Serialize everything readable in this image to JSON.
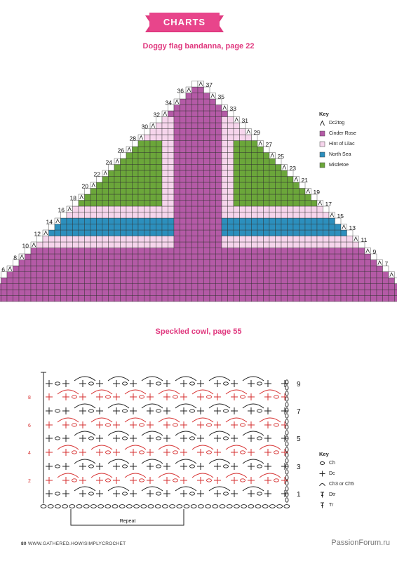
{
  "header": {
    "banner": "CHARTS"
  },
  "bandanna": {
    "title": "Doggy flag bandanna, page 22",
    "left_rows": [
      "2",
      "4",
      "6",
      "8",
      "10",
      "12",
      "14",
      "16",
      "18",
      "20",
      "22",
      "24",
      "26",
      "28",
      "30",
      "32",
      "34",
      "36"
    ],
    "right_rows": [
      "1",
      "3",
      "5",
      "7",
      "9",
      "11",
      "13",
      "15",
      "17",
      "19",
      "21",
      "23",
      "25",
      "27",
      "29",
      "31",
      "33",
      "35",
      "37"
    ],
    "key": {
      "title": "Key",
      "items": [
        {
          "label": "Dc2tog",
          "icon": "dc2tog-icon",
          "color": ""
        },
        {
          "label": "Cinder Rose",
          "icon": "swatch",
          "color": "#b45aa6"
        },
        {
          "label": "Hint of Lilac",
          "icon": "swatch",
          "color": "#f6d5ec"
        },
        {
          "label": "North Sea",
          "icon": "swatch",
          "color": "#2c8fbd"
        },
        {
          "label": "Mistletoe",
          "icon": "swatch",
          "color": "#6ba63a"
        }
      ]
    }
  },
  "cowl": {
    "title": "Speckled cowl, page 55",
    "right_rows": [
      "9",
      "7",
      "5",
      "3",
      "1"
    ],
    "left_rows": [
      "8",
      "6",
      "4",
      "2"
    ],
    "repeat_label": "Repeat",
    "key": {
      "title": "Key",
      "items": [
        {
          "label": "Ch",
          "icon": "chain-icon"
        },
        {
          "label": "Dc",
          "icon": "dc-icon"
        },
        {
          "label": "Ch3 or Ch5",
          "icon": "arc-icon"
        },
        {
          "label": "Dtr",
          "icon": "dtr-icon"
        },
        {
          "label": "Tr",
          "icon": "tr-icon"
        }
      ]
    }
  },
  "footer": {
    "page": "80",
    "url": "WWW.GATHERED.HOW/SIMPLYCROCHET"
  },
  "watermark": "PassionForum.ru",
  "colors": {
    "accent": "#e0397f",
    "red_row": "#d62f2f"
  }
}
